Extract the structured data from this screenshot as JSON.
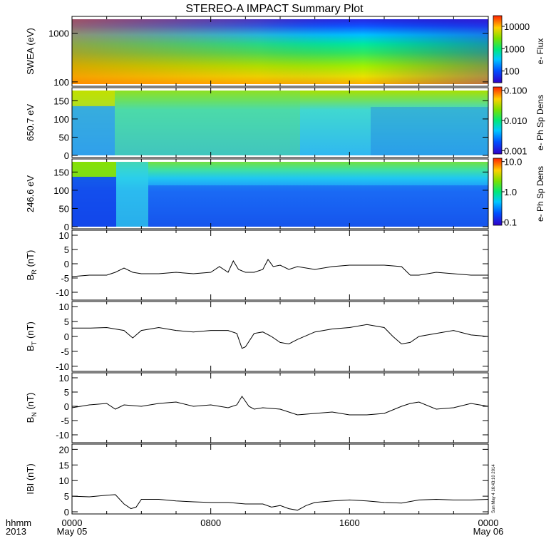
{
  "title": "STEREO-A IMPACT Summary Plot",
  "footer": {
    "row1_label": "hhmm",
    "row2_label": "2013",
    "x_ticks": [
      "0000",
      "0800",
      "1600",
      "0000"
    ],
    "x_dates": [
      "May 05",
      "",
      "",
      "May 06"
    ],
    "stamp": "Sun May  4 16:43:10 2014"
  },
  "chart_data": [
    {
      "type": "heatmap",
      "ylabel": "SWEA (eV)",
      "yscale": "log",
      "ylim": [
        90,
        2000
      ],
      "yticks": [
        "100",
        "1000"
      ],
      "colorbar": {
        "label": "e- Flux",
        "scale": "log",
        "ticks": [
          "100",
          "1000",
          "10000"
        ],
        "range": [
          30,
          30000
        ]
      }
    },
    {
      "type": "heatmap",
      "ylabel": "650.7 eV",
      "ylim": [
        0,
        180
      ],
      "yticks": [
        "0",
        "50",
        "100",
        "150"
      ],
      "colorbar": {
        "label": "e- Ph Sp Dens",
        "scale": "log",
        "ticks": [
          "0.001",
          "0.010",
          "0.100"
        ],
        "range": [
          0.001,
          0.1
        ]
      }
    },
    {
      "type": "heatmap",
      "ylabel": "246.6 eV",
      "ylim": [
        0,
        180
      ],
      "yticks": [
        "0",
        "50",
        "100",
        "150"
      ],
      "colorbar": {
        "label": "e- Ph Sp Dens",
        "scale": "log",
        "ticks": [
          "0.1",
          "1.0",
          "10.0"
        ],
        "range": [
          0.1,
          10
        ]
      }
    },
    {
      "type": "line",
      "ylabel": "B",
      "ylabel_sub": "R",
      "ylabel_unit": "(nT)",
      "ylim": [
        -12,
        11
      ],
      "yticks": [
        "-10",
        "-5",
        "0",
        "5",
        "10"
      ],
      "x_hours": [
        0,
        1,
        2,
        2.5,
        3,
        3.5,
        4,
        5,
        6,
        7,
        8,
        8.5,
        9,
        9.3,
        9.6,
        10,
        10.5,
        11,
        11.3,
        11.6,
        12,
        12.5,
        13,
        14,
        15,
        16,
        17,
        18,
        19,
        19.5,
        20,
        21,
        22,
        23,
        24
      ],
      "values": [
        -4.5,
        -4,
        -4,
        -3,
        -1.5,
        -3,
        -3.5,
        -3.5,
        -3,
        -3.5,
        -3,
        -1,
        -3,
        1,
        -2,
        -3,
        -3,
        -2,
        1.5,
        -1,
        -0.5,
        -2,
        -1,
        -2,
        -1,
        -0.5,
        -0.5,
        -0.5,
        -1,
        -4,
        -4,
        -3,
        -3.5,
        -4,
        -4
      ]
    },
    {
      "type": "line",
      "ylabel": "B",
      "ylabel_sub": "T",
      "ylabel_unit": "(nT)",
      "ylim": [
        -11,
        11
      ],
      "yticks": [
        "-10",
        "-5",
        "0",
        "5",
        "10"
      ],
      "x_hours": [
        0,
        1,
        2,
        3,
        3.5,
        4,
        5,
        6,
        7,
        8,
        9,
        9.5,
        9.8,
        10,
        10.5,
        11,
        11.5,
        12,
        12.5,
        13,
        14,
        15,
        16,
        17,
        18,
        18.5,
        19,
        19.5,
        20,
        21,
        22,
        23,
        24
      ],
      "values": [
        2.8,
        2.8,
        3,
        2,
        -0.5,
        2,
        3,
        2,
        1.5,
        2,
        2,
        1,
        -4,
        -3.5,
        1,
        1.5,
        0,
        -2,
        -2.5,
        -1,
        1.5,
        2.5,
        3,
        4,
        3,
        0,
        -2.5,
        -2,
        0,
        1,
        2,
        0.5,
        0
      ]
    },
    {
      "type": "line",
      "ylabel": "B",
      "ylabel_sub": "N",
      "ylabel_unit": "(nT)",
      "ylim": [
        -12,
        11
      ],
      "yticks": [
        "-10",
        "-5",
        "0",
        "5",
        "10"
      ],
      "x_hours": [
        0,
        1,
        2,
        2.5,
        3,
        4,
        5,
        6,
        7,
        8,
        9,
        9.5,
        9.8,
        10.2,
        10.5,
        11,
        12,
        13,
        14,
        15,
        16,
        17,
        18,
        19,
        19.5,
        20,
        21,
        22,
        23,
        24
      ],
      "values": [
        -0.5,
        0.5,
        1,
        -1,
        0.5,
        0,
        1,
        1.5,
        0,
        0.5,
        -0.5,
        0.5,
        3.5,
        0,
        -1,
        -0.5,
        -1,
        -3,
        -2.5,
        -2,
        -3,
        -3,
        -2.5,
        0,
        1,
        1.5,
        -1,
        -0.5,
        1,
        0
      ]
    },
    {
      "type": "line",
      "ylabel": "IBI",
      "ylabel_unit": "(nT)",
      "ylim": [
        0,
        21
      ],
      "yticks": [
        "0",
        "5",
        "10",
        "15",
        "20"
      ],
      "x_hours": [
        0,
        1,
        2,
        2.5,
        3,
        3.4,
        3.7,
        4,
        5,
        6,
        7,
        8,
        9,
        10,
        11,
        11.5,
        12,
        12.5,
        13,
        13.5,
        14,
        15,
        16,
        17,
        18,
        19,
        20,
        21,
        22,
        23,
        24
      ],
      "values": [
        5,
        4.8,
        5.3,
        5.5,
        2.5,
        1,
        1.5,
        4,
        4,
        3.5,
        3.2,
        3,
        3,
        2.5,
        2.5,
        1.5,
        2,
        1,
        0.5,
        2,
        3,
        3.5,
        3.8,
        3.5,
        3,
        2.8,
        3.8,
        4,
        3.8,
        3.8,
        4
      ]
    }
  ]
}
